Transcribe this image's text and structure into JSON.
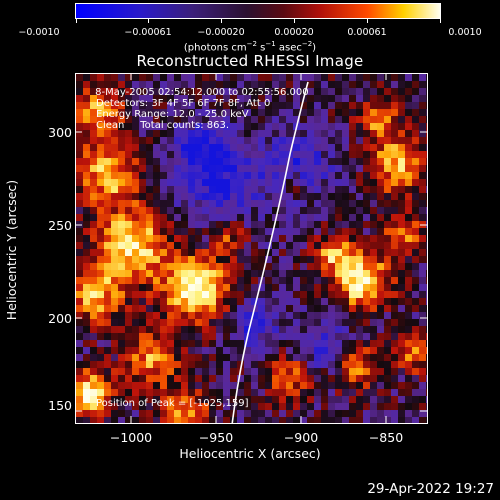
{
  "colorbar": {
    "ticks": [
      "−0.0010",
      "−0.00061",
      "−0.00020",
      "0.00020",
      "0.00061",
      "0.0010"
    ],
    "units_label": "(photons cm",
    "units_exp1": "−2",
    "units_s": " s",
    "units_exp2": "−1",
    "units_asec": " asec",
    "units_exp3": "−2",
    "units_close": ")"
  },
  "title": "Reconstructed RHESSI Image",
  "info": {
    "time_range": " 8-May-2005 02:54:12.000 to 02:55:56.000",
    "detectors": "Detectors: 3F 4F 5F 6F 7F 8F, Att 0",
    "energy": "Energy Range: 12.0 - 25.0 keV",
    "clean": "Clean     Total counts: 863.",
    "peak": "Position of Peak = [-1025,159]"
  },
  "axes": {
    "xlabel": "Heliocentric X (arcsec)",
    "ylabel": "Heliocentric Y (arcsec)",
    "xticks": [
      "−1000",
      "−950",
      "−900",
      "−850"
    ],
    "yticks": [
      "300",
      "250",
      "200",
      "150"
    ],
    "xrange": [
      -1030,
      -835
    ],
    "yrange": [
      140,
      328
    ]
  },
  "timestamp": "29-Apr-2022 19:27",
  "colors": {
    "background": "#000000",
    "limb": "#ffffff"
  }
}
